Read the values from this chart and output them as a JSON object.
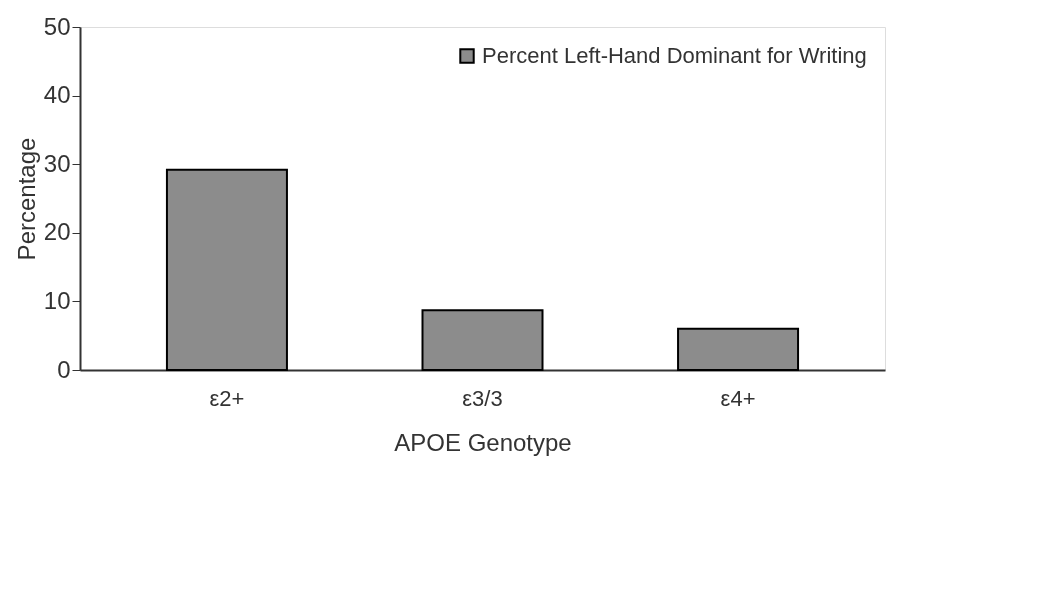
{
  "chart_data": {
    "type": "bar",
    "xlabel": "APOE Genotype",
    "ylabel": "Percentage",
    "categories": [
      "ε2+",
      "ε3/3",
      "ε4+"
    ],
    "series": [
      {
        "name": "Percent Left-Hand Dominant for Writing",
        "color": "#8c8c8c",
        "values": [
          29.2,
          8.7,
          6.0
        ]
      }
    ],
    "ylim": [
      0,
      50
    ],
    "yticks": [
      0,
      10,
      20,
      30,
      40,
      50
    ],
    "grid": false,
    "legend": "top right"
  }
}
